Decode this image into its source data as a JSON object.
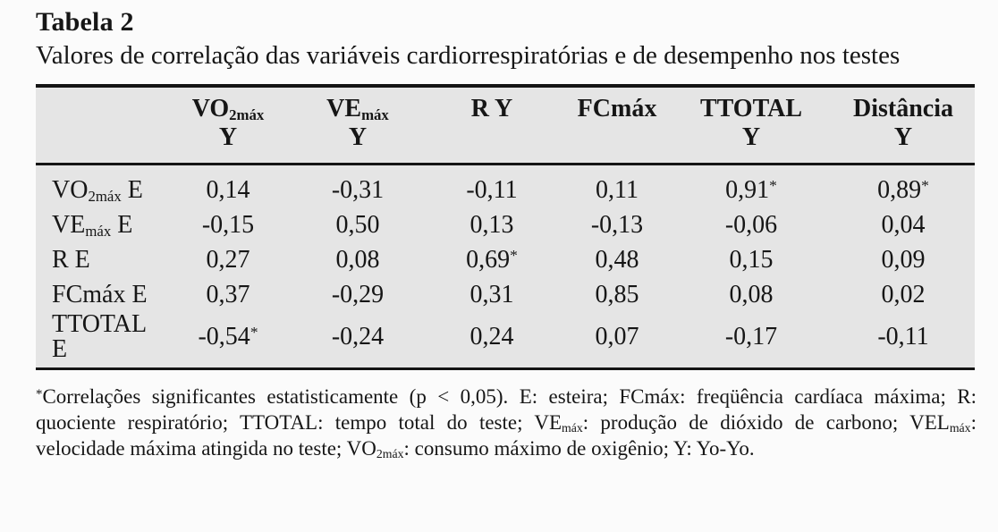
{
  "page": {
    "title": "Tabela 2",
    "subtitle": "Valores de correlação das variáveis cardiorrespiratórias e de desempenho nos testes"
  },
  "table": {
    "header": [
      {
        "pre": "",
        "sub": "",
        "line2": ""
      },
      {
        "pre": "VO",
        "sub": "2máx",
        "line2": "Y"
      },
      {
        "pre": "VE",
        "sub": "máx",
        "line2": "Y"
      },
      {
        "pre": "R Y",
        "sub": "",
        "line2": ""
      },
      {
        "pre": "FCmáx",
        "sub": "",
        "line2": ""
      },
      {
        "pre": "TTOTAL",
        "sub": "",
        "line2": "Y"
      },
      {
        "pre": "Distância",
        "sub": "",
        "line2": "Y"
      }
    ],
    "rows": [
      {
        "label": {
          "pre": "VO",
          "sub": "2máx",
          "post": " E"
        },
        "cells": [
          {
            "v": "0,14"
          },
          {
            "v": "-0,31"
          },
          {
            "v": "-0,11"
          },
          {
            "v": "0,11"
          },
          {
            "v": "0,91",
            "star": "*"
          },
          {
            "v": "0,89",
            "star": "*"
          }
        ]
      },
      {
        "label": {
          "pre": "VE",
          "sub": "máx",
          "post": " E"
        },
        "cells": [
          {
            "v": "-0,15"
          },
          {
            "v": "0,50"
          },
          {
            "v": "0,13"
          },
          {
            "v": "-0,13"
          },
          {
            "v": "-0,06"
          },
          {
            "v": "0,04"
          }
        ]
      },
      {
        "label": {
          "pre": "R E",
          "sub": "",
          "post": ""
        },
        "cells": [
          {
            "v": "0,27"
          },
          {
            "v": "0,08"
          },
          {
            "v": "0,69",
            "star": "*"
          },
          {
            "v": "0,48"
          },
          {
            "v": "0,15"
          },
          {
            "v": "0,09"
          }
        ]
      },
      {
        "label": {
          "pre": "FCmáx E",
          "sub": "",
          "post": ""
        },
        "cells": [
          {
            "v": "0,37"
          },
          {
            "v": "-0,29"
          },
          {
            "v": "0,31"
          },
          {
            "v": "0,85"
          },
          {
            "v": "0,08"
          },
          {
            "v": "0,02"
          }
        ]
      },
      {
        "label": {
          "pre": "TTOTAL E",
          "sub": "",
          "post": ""
        },
        "cells": [
          {
            "v": "-0,54",
            "star": "*"
          },
          {
            "v": "-0,24"
          },
          {
            "v": "0,24"
          },
          {
            "v": "0,07"
          },
          {
            "v": "-0,17"
          },
          {
            "v": "-0,11"
          }
        ]
      }
    ]
  },
  "footnote": {
    "segments": [
      {
        "sup": "*"
      },
      {
        "text": "Correlações significantes estatisticamente (p < 0,05). E: esteira; FCmáx: freqüência cardíaca máxima; R: quociente respiratório; TTOTAL: tempo total do teste; VE"
      },
      {
        "sub": "máx"
      },
      {
        "text": ": produção de dióxido de carbono; VEL"
      },
      {
        "sub": "máx"
      },
      {
        "text": ": velocidade máxima atingida no teste; VO"
      },
      {
        "sub": "2máx"
      },
      {
        "text": ": consumo máximo de oxigênio; Y: Yo-Yo."
      }
    ]
  },
  "colors": {
    "page_bg": "#fbfbfb",
    "table_bg": "#e5e5e5",
    "rule": "#141414",
    "text": "#161616"
  }
}
